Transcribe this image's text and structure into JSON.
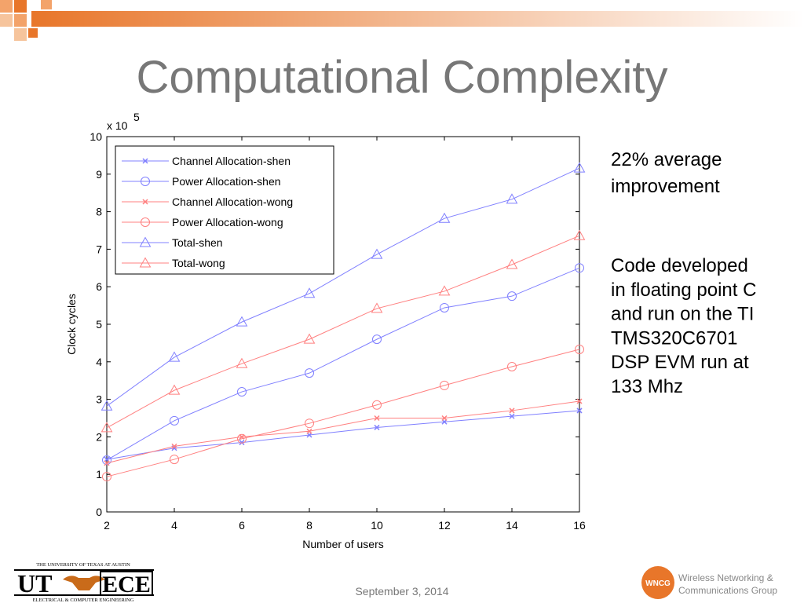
{
  "slide": {
    "title": "Computational Complexity",
    "note1": [
      "22% average",
      "improvement"
    ],
    "note2": [
      "Code developed",
      "in floating point C",
      "and run on the TI",
      "TMS320C6701",
      "DSP EVM run at",
      "133 Mhz"
    ],
    "date": "September 3, 2014",
    "logo_left": {
      "top": "THE UNIVERSITY OF TEXAS AT AUSTIN",
      "ut": "UT",
      "ece": "ECE",
      "bottom": "ELECTRICAL & COMPUTER ENGINEERING"
    },
    "logo_right": {
      "badge": "WNCG",
      "line1": "Wireless Networking &",
      "line2": "Communications Group"
    }
  },
  "chart_data": {
    "type": "line",
    "x_label": "Number of users",
    "y_label": "Clock cycles",
    "y_multiplier": {
      "base": "x 10",
      "exponent": "5"
    },
    "x": [
      2,
      4,
      6,
      8,
      10,
      12,
      14,
      16
    ],
    "xlim": [
      2,
      16
    ],
    "xticks": [
      2,
      4,
      6,
      8,
      10,
      12,
      14,
      16
    ],
    "ylim": [
      0,
      10
    ],
    "yticks": [
      0,
      1,
      2,
      3,
      4,
      5,
      6,
      7,
      8,
      9,
      10
    ],
    "legend": "upper-left",
    "series": [
      {
        "name": "Channel Allocation-shen",
        "color": "#8080ff",
        "marker": "x",
        "values": [
          1.4,
          1.7,
          1.85,
          2.05,
          2.25,
          2.4,
          2.55,
          2.7
        ]
      },
      {
        "name": "Power Allocation-shen",
        "color": "#8080ff",
        "marker": "circle",
        "values": [
          1.38,
          2.43,
          3.2,
          3.7,
          4.6,
          5.44,
          5.75,
          6.5
        ]
      },
      {
        "name": "Channel Allocation-wong",
        "color": "#ff8080",
        "marker": "x",
        "values": [
          1.3,
          1.75,
          2.0,
          2.15,
          2.5,
          2.5,
          2.7,
          2.95
        ]
      },
      {
        "name": "Power Allocation-wong",
        "color": "#ff8080",
        "marker": "circle",
        "values": [
          0.94,
          1.4,
          1.95,
          2.36,
          2.85,
          3.37,
          3.87,
          4.33
        ]
      },
      {
        "name": "Total-shen",
        "color": "#8080ff",
        "marker": "triangle",
        "values": [
          2.82,
          4.12,
          5.06,
          5.82,
          6.86,
          7.82,
          8.33,
          9.16
        ]
      },
      {
        "name": "Total-wong",
        "color": "#ff8080",
        "marker": "triangle",
        "values": [
          2.24,
          3.24,
          3.95,
          4.6,
          5.42,
          5.88,
          6.59,
          7.36
        ]
      }
    ]
  }
}
